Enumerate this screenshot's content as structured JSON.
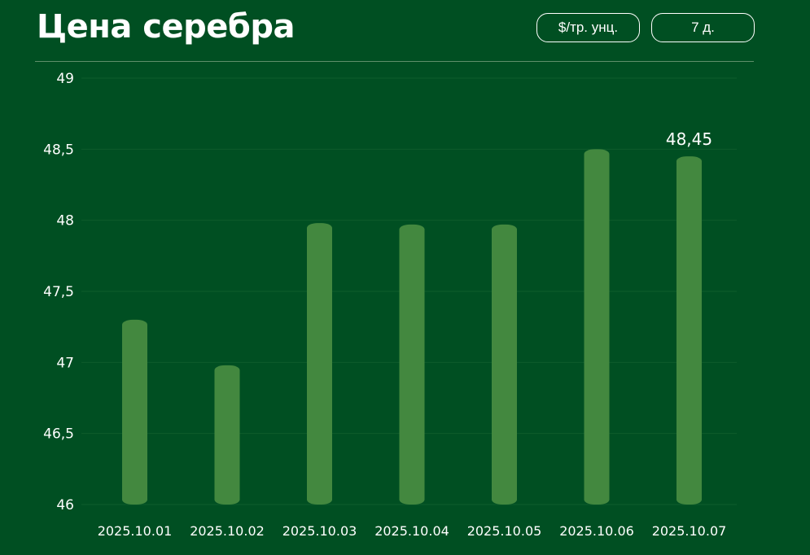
{
  "header": {
    "title": "Цена серебра",
    "unit_label": "$/тр. унц.",
    "range_label": "7 д."
  },
  "colors": {
    "background": "#004f22",
    "bar": "#43883f",
    "text": "#ffffff"
  },
  "chart_data": {
    "type": "bar",
    "categories": [
      "2025.10.01",
      "2025.10.02",
      "2025.10.03",
      "2025.10.04",
      "2025.10.05",
      "2025.10.06",
      "2025.10.07"
    ],
    "values": [
      47.3,
      46.98,
      47.98,
      47.97,
      47.97,
      48.5,
      48.45
    ],
    "ylim": [
      46,
      49
    ],
    "yticks": [
      "46",
      "46,5",
      "47",
      "47,5",
      "48",
      "48,5",
      "49"
    ],
    "ytick_values": [
      46,
      46.5,
      47,
      47.5,
      48,
      48.5,
      49
    ],
    "annotation": {
      "index": 6,
      "label": "48,45"
    },
    "grid": true
  }
}
